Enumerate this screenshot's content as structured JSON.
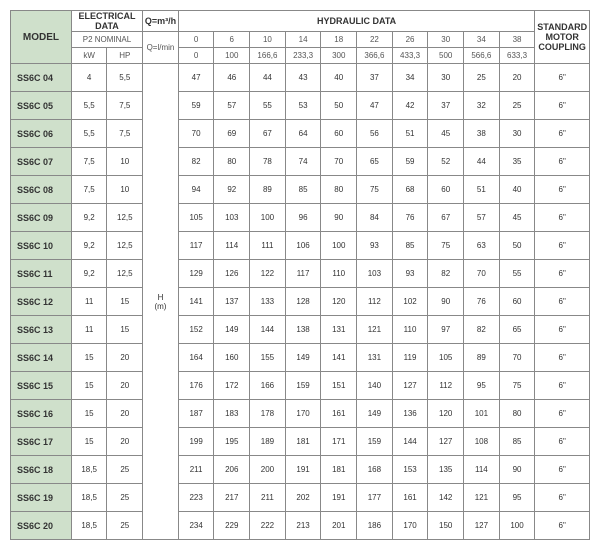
{
  "colors": {
    "model_bg": "#cfe0cb",
    "border": "#888888",
    "text": "#333333"
  },
  "headers": {
    "model": "MODEL",
    "electrical": "ELECTRICAL DATA",
    "p2": "P2 NOMINAL",
    "hydraulic": "HYDRAULIC DATA",
    "coupling": "STANDARD MOTOR COUPLING",
    "kw": "kW",
    "hp": "HP",
    "q_m3h": "Q=m³/h",
    "q_lmin": "Q=l/min",
    "h_m": "H (m)"
  },
  "flow_m3h": [
    "0",
    "6",
    "10",
    "14",
    "18",
    "22",
    "26",
    "30",
    "34",
    "38"
  ],
  "flow_lmin": [
    "0",
    "100",
    "166,6",
    "233,3",
    "300",
    "366,6",
    "433,3",
    "500",
    "566,6",
    "633,3"
  ],
  "rows": [
    {
      "model": "SS6C 04",
      "kw": "4",
      "hp": "5,5",
      "h": [
        "47",
        "46",
        "44",
        "43",
        "40",
        "37",
        "34",
        "30",
        "25",
        "20"
      ],
      "c": "6\""
    },
    {
      "model": "SS6C 05",
      "kw": "5,5",
      "hp": "7,5",
      "h": [
        "59",
        "57",
        "55",
        "53",
        "50",
        "47",
        "42",
        "37",
        "32",
        "25"
      ],
      "c": "6\""
    },
    {
      "model": "SS6C 06",
      "kw": "5,5",
      "hp": "7,5",
      "h": [
        "70",
        "69",
        "67",
        "64",
        "60",
        "56",
        "51",
        "45",
        "38",
        "30"
      ],
      "c": "6\""
    },
    {
      "model": "SS6C 07",
      "kw": "7,5",
      "hp": "10",
      "h": [
        "82",
        "80",
        "78",
        "74",
        "70",
        "65",
        "59",
        "52",
        "44",
        "35"
      ],
      "c": "6\""
    },
    {
      "model": "SS6C 08",
      "kw": "7,5",
      "hp": "10",
      "h": [
        "94",
        "92",
        "89",
        "85",
        "80",
        "75",
        "68",
        "60",
        "51",
        "40"
      ],
      "c": "6\""
    },
    {
      "model": "SS6C 09",
      "kw": "9,2",
      "hp": "12,5",
      "h": [
        "105",
        "103",
        "100",
        "96",
        "90",
        "84",
        "76",
        "67",
        "57",
        "45"
      ],
      "c": "6\""
    },
    {
      "model": "SS6C 10",
      "kw": "9,2",
      "hp": "12,5",
      "h": [
        "117",
        "114",
        "111",
        "106",
        "100",
        "93",
        "85",
        "75",
        "63",
        "50"
      ],
      "c": "6\""
    },
    {
      "model": "SS6C 11",
      "kw": "9,2",
      "hp": "12,5",
      "h": [
        "129",
        "126",
        "122",
        "117",
        "110",
        "103",
        "93",
        "82",
        "70",
        "55"
      ],
      "c": "6\""
    },
    {
      "model": "SS6C 12",
      "kw": "11",
      "hp": "15",
      "h": [
        "141",
        "137",
        "133",
        "128",
        "120",
        "112",
        "102",
        "90",
        "76",
        "60"
      ],
      "c": "6\""
    },
    {
      "model": "SS6C 13",
      "kw": "11",
      "hp": "15",
      "h": [
        "152",
        "149",
        "144",
        "138",
        "131",
        "121",
        "110",
        "97",
        "82",
        "65"
      ],
      "c": "6\""
    },
    {
      "model": "SS6C 14",
      "kw": "15",
      "hp": "20",
      "h": [
        "164",
        "160",
        "155",
        "149",
        "141",
        "131",
        "119",
        "105",
        "89",
        "70"
      ],
      "c": "6\""
    },
    {
      "model": "SS6C 15",
      "kw": "15",
      "hp": "20",
      "h": [
        "176",
        "172",
        "166",
        "159",
        "151",
        "140",
        "127",
        "112",
        "95",
        "75"
      ],
      "c": "6\""
    },
    {
      "model": "SS6C 16",
      "kw": "15",
      "hp": "20",
      "h": [
        "187",
        "183",
        "178",
        "170",
        "161",
        "149",
        "136",
        "120",
        "101",
        "80"
      ],
      "c": "6\""
    },
    {
      "model": "SS6C 17",
      "kw": "15",
      "hp": "20",
      "h": [
        "199",
        "195",
        "189",
        "181",
        "171",
        "159",
        "144",
        "127",
        "108",
        "85"
      ],
      "c": "6\""
    },
    {
      "model": "SS6C 18",
      "kw": "18,5",
      "hp": "25",
      "h": [
        "211",
        "206",
        "200",
        "191",
        "181",
        "168",
        "153",
        "135",
        "114",
        "90"
      ],
      "c": "6\""
    },
    {
      "model": "SS6C 19",
      "kw": "18,5",
      "hp": "25",
      "h": [
        "223",
        "217",
        "211",
        "202",
        "191",
        "177",
        "161",
        "142",
        "121",
        "95"
      ],
      "c": "6\""
    },
    {
      "model": "SS6C 20",
      "kw": "18,5",
      "hp": "25",
      "h": [
        "234",
        "229",
        "222",
        "213",
        "201",
        "186",
        "170",
        "150",
        "127",
        "100"
      ],
      "c": "6\""
    }
  ]
}
